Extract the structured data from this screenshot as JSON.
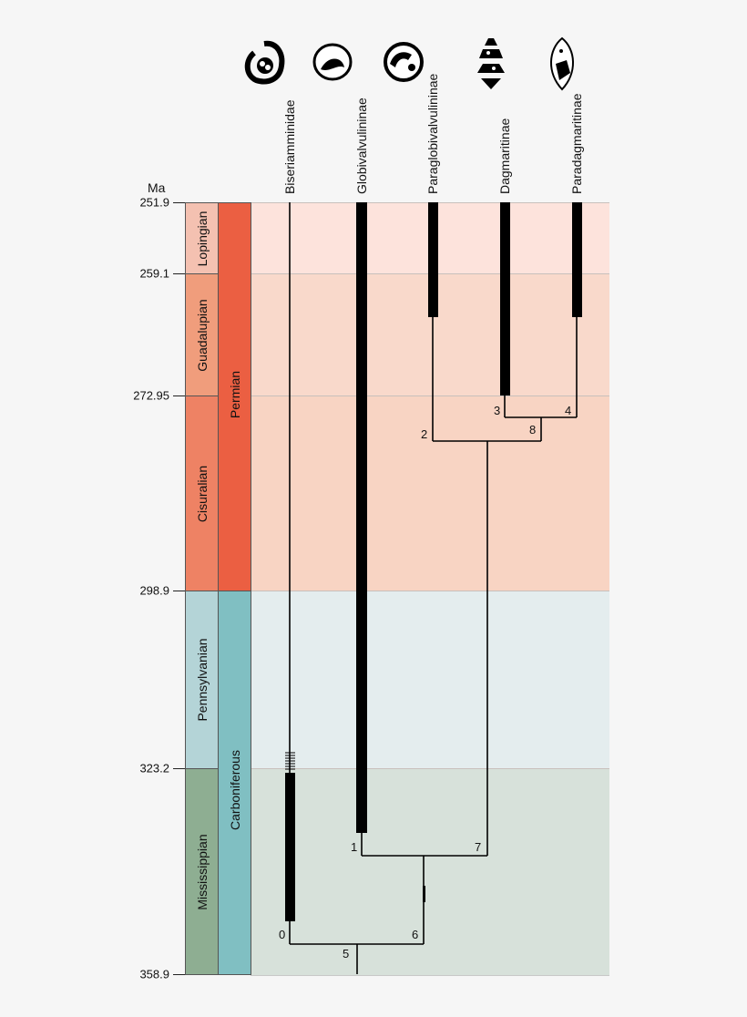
{
  "axis_unit": "Ma",
  "ticks": [
    "251.9",
    "259.1",
    "272.95",
    "298.9",
    "323.2",
    "358.9"
  ],
  "epochs": [
    {
      "name": "Lopingian",
      "color": "#f4c1b1"
    },
    {
      "name": "Guadalupian",
      "color": "#f09d7c"
    },
    {
      "name": "Cisuralian",
      "color": "#ee8264"
    },
    {
      "name": "Pennsylvanian",
      "color": "#b4d4d7"
    },
    {
      "name": "Mississippian",
      "color": "#8eae92"
    }
  ],
  "periods": [
    {
      "name": "Permian",
      "color": "#eb5f42"
    },
    {
      "name": "Carboniferous",
      "color": "#80bfc2"
    }
  ],
  "taxa": [
    "Biseriamminidae",
    "Globivalvulininae",
    "Paraglobivalvulininae",
    "Dagmaritinae",
    "Paradagmaritinae"
  ],
  "nodes": [
    "0",
    "1",
    "2",
    "3",
    "4",
    "5",
    "6",
    "7",
    "8"
  ]
}
